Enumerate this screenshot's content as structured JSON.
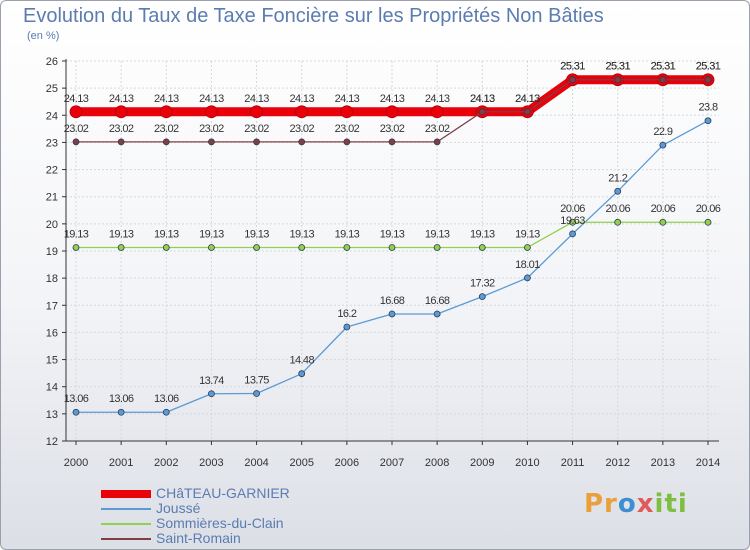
{
  "chart_data": {
    "type": "line",
    "title": "Evolution du Taux de Taxe Foncière sur les Propriétés Non Bâties",
    "ylabel": "(en %)",
    "xlabel": "",
    "ylim": [
      12,
      26
    ],
    "yticks": [
      12,
      13,
      14,
      15,
      16,
      17,
      18,
      19,
      20,
      21,
      22,
      23,
      24,
      25,
      26
    ],
    "x": [
      "2000",
      "2001",
      "2002",
      "2003",
      "2004",
      "2005",
      "2006",
      "2007",
      "2008",
      "2009",
      "2010",
      "2011",
      "2012",
      "2013",
      "2014"
    ],
    "grid": true,
    "series": [
      {
        "name": "CHâTEAU-GARNIER",
        "color": "#e8000b",
        "emphasis": true,
        "values": [
          24.13,
          24.13,
          24.13,
          24.13,
          24.13,
          24.13,
          24.13,
          24.13,
          24.13,
          24.13,
          24.13,
          25.31,
          25.31,
          25.31,
          25.31
        ],
        "labels": [
          "24.13",
          "24.13",
          "24.13",
          "24.13",
          "24.13",
          "24.13",
          "24.13",
          "24.13",
          "24.13",
          "24.13",
          "24.13",
          "25.31",
          "25.31",
          "25.31",
          "25.31"
        ]
      },
      {
        "name": "Joussé",
        "color": "#5b9bd5",
        "values": [
          13.06,
          13.06,
          13.06,
          13.74,
          13.75,
          14.48,
          16.2,
          16.68,
          16.68,
          17.32,
          18.01,
          19.63,
          21.2,
          22.9,
          23.8
        ],
        "labels": [
          "13.06",
          "13.06",
          "13.06",
          "13.74",
          "13.75",
          "14.48",
          "16.2",
          "16.68",
          "16.68",
          "17.32",
          "18.01",
          "19.63",
          "21.2",
          "22.9",
          "23.8"
        ]
      },
      {
        "name": "Sommières-du-Clain",
        "color": "#92d050",
        "values": [
          19.13,
          19.13,
          19.13,
          19.13,
          19.13,
          19.13,
          19.13,
          19.13,
          19.13,
          19.13,
          19.13,
          20.06,
          20.06,
          20.06,
          20.06
        ],
        "labels": [
          "19.13",
          "19.13",
          "19.13",
          "19.13",
          "19.13",
          "19.13",
          "19.13",
          "19.13",
          "19.13",
          "19.13",
          "19.13",
          "20.06",
          "20.06",
          "20.06",
          "20.06"
        ]
      },
      {
        "name": "Saint-Romain",
        "color": "#7f3f45",
        "values": [
          23.02,
          23.02,
          23.02,
          23.02,
          23.02,
          23.02,
          23.02,
          23.02,
          23.02,
          24.13,
          24.13,
          25.31,
          25.31,
          25.31,
          25.31
        ],
        "labels": [
          "23.02",
          "23.02",
          "23.02",
          "23.02",
          "23.02",
          "23.02",
          "23.02",
          "23.02",
          "23.02",
          "24.13",
          "24.13",
          "25.31",
          "25.31",
          "25.31",
          "25.31"
        ]
      }
    ]
  },
  "brand": {
    "p1": "Pr",
    "p2": "o",
    "p3": "x",
    "p4": "iti"
  }
}
